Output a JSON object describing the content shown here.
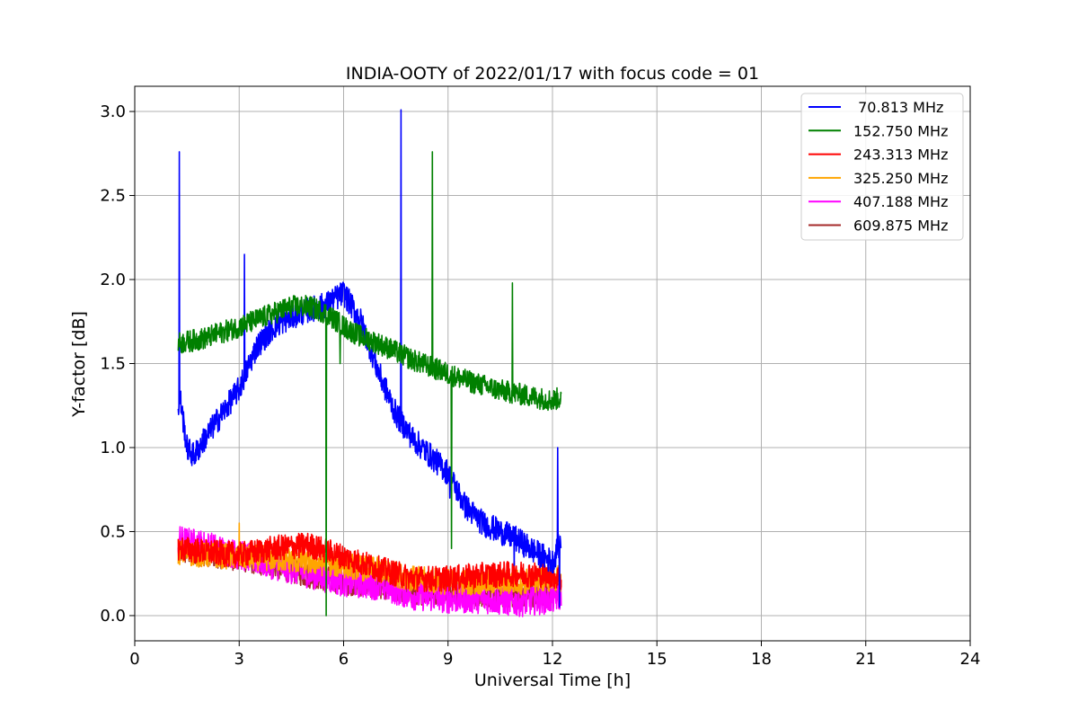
{
  "chart_data": {
    "type": "line",
    "title": "INDIA-OOTY of 2022/01/17 with focus code = 01",
    "xlabel": "Universal Time [h]",
    "ylabel": "Y-factor [dB]",
    "xlim": [
      0,
      24
    ],
    "ylim": [
      -0.15,
      3.15
    ],
    "xticks": [
      0,
      3,
      6,
      9,
      12,
      15,
      18,
      21,
      24
    ],
    "yticks": [
      0.0,
      0.5,
      1.0,
      1.5,
      2.0,
      2.5,
      3.0
    ],
    "xtick_labels": [
      "0",
      "3",
      "6",
      "9",
      "12",
      "15",
      "18",
      "21",
      "24"
    ],
    "ytick_labels": [
      "0.0",
      "0.5",
      "1.0",
      "1.5",
      "2.0",
      "2.5",
      "3.0"
    ],
    "grid": true,
    "legend_position": "top-right",
    "series": [
      {
        "name": " 70.813 MHz",
        "color": "#0000ff",
        "noise": 0.035,
        "x": [
          1.25,
          1.3,
          1.5,
          1.7,
          2.0,
          2.5,
          3.0,
          3.5,
          4.0,
          4.5,
          5.0,
          5.5,
          6.0,
          6.5,
          7.0,
          7.5,
          8.0,
          8.5,
          9.0,
          9.5,
          10.0,
          10.5,
          11.0,
          11.5,
          12.0,
          12.25
        ],
        "y": [
          1.2,
          1.3,
          1.0,
          0.95,
          1.05,
          1.2,
          1.35,
          1.6,
          1.72,
          1.78,
          1.82,
          1.85,
          1.92,
          1.75,
          1.45,
          1.2,
          1.05,
          0.95,
          0.85,
          0.65,
          0.55,
          0.5,
          0.45,
          0.38,
          0.32,
          0.45
        ],
        "spikes": [
          [
            1.28,
            2.76
          ],
          [
            3.15,
            2.15
          ],
          [
            7.65,
            3.01
          ],
          [
            9.05,
            0.7
          ],
          [
            10.9,
            0.3
          ],
          [
            12.15,
            1.0
          ],
          [
            12.2,
            0.05
          ]
        ]
      },
      {
        "name": "152.750 MHz",
        "color": "#008000",
        "noise": 0.03,
        "x": [
          1.25,
          2.0,
          3.0,
          4.0,
          4.5,
          5.0,
          5.5,
          6.0,
          6.5,
          7.0,
          7.5,
          8.0,
          8.5,
          9.0,
          9.5,
          10.0,
          10.5,
          11.0,
          11.5,
          12.0,
          12.25
        ],
        "y": [
          1.62,
          1.65,
          1.72,
          1.8,
          1.84,
          1.84,
          1.8,
          1.72,
          1.66,
          1.62,
          1.57,
          1.52,
          1.48,
          1.44,
          1.4,
          1.37,
          1.34,
          1.32,
          1.3,
          1.28,
          1.3
        ],
        "spikes": [
          [
            5.5,
            0.0
          ],
          [
            8.55,
            2.76
          ],
          [
            9.1,
            0.4
          ],
          [
            10.85,
            1.98
          ],
          [
            5.9,
            1.5
          ]
        ]
      },
      {
        "name": "243.313 MHz",
        "color": "#ff0000",
        "noise": 0.035,
        "x": [
          1.25,
          2.0,
          3.0,
          4.0,
          5.0,
          6.0,
          7.0,
          8.0,
          9.0,
          10.0,
          11.0,
          12.0,
          12.25
        ],
        "y": [
          0.4,
          0.38,
          0.36,
          0.4,
          0.42,
          0.35,
          0.28,
          0.22,
          0.22,
          0.24,
          0.25,
          0.24,
          0.22
        ],
        "spikes": []
      },
      {
        "name": "325.250 MHz",
        "color": "#ffa500",
        "noise": 0.035,
        "x": [
          1.25,
          2.0,
          3.0,
          4.0,
          5.0,
          6.0,
          7.0,
          8.0,
          9.0,
          10.0,
          11.0,
          12.0,
          12.25
        ],
        "y": [
          0.38,
          0.36,
          0.35,
          0.34,
          0.32,
          0.3,
          0.27,
          0.22,
          0.2,
          0.2,
          0.2,
          0.22,
          0.22
        ],
        "spikes": [
          [
            3.0,
            0.55
          ]
        ]
      },
      {
        "name": "407.188 MHz",
        "color": "#ff00ff",
        "noise": 0.04,
        "x": [
          1.25,
          2.0,
          3.0,
          4.0,
          5.0,
          6.0,
          7.0,
          8.0,
          9.0,
          10.0,
          11.0,
          12.0,
          12.25
        ],
        "y": [
          0.45,
          0.42,
          0.36,
          0.3,
          0.25,
          0.2,
          0.18,
          0.12,
          0.1,
          0.1,
          0.08,
          0.1,
          0.12
        ],
        "spikes": []
      },
      {
        "name": "609.875 MHz",
        "color": "#a52a2a",
        "noise": 0.035,
        "x": [
          1.25,
          2.0,
          3.0,
          4.0,
          5.0,
          6.0,
          7.0,
          8.0,
          9.0,
          10.0,
          11.0,
          12.0,
          12.25
        ],
        "y": [
          0.38,
          0.37,
          0.34,
          0.3,
          0.24,
          0.2,
          0.18,
          0.14,
          0.14,
          0.13,
          0.12,
          0.14,
          0.16
        ],
        "spikes": []
      }
    ]
  }
}
